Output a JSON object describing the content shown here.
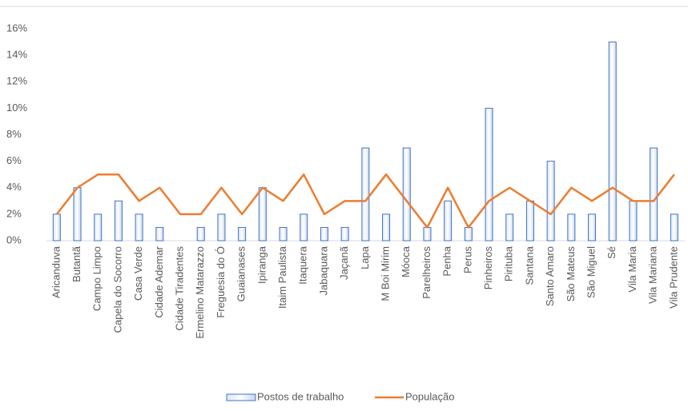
{
  "chart_data": {
    "type": "bar_line",
    "categories": [
      "Aricanduva",
      "Butantã",
      "Campo Limpo",
      "Capela do Socorro",
      "Casa Verde",
      "Cidade Ademar",
      "Cidade Tiradentes",
      "Ermelino Matarazzo",
      "Freguesia do Ó",
      "Guaianases",
      "Ipiranga",
      "Itaim Paulista",
      "Itaquera",
      "Jabaquara",
      "Jaçanã",
      "Lapa",
      "M Boi Mirim",
      "Móoca",
      "Parelheiros",
      "Penha",
      "Perus",
      "Pinheiros",
      "Pirituba",
      "Santana",
      "Santo Amaro",
      "São Mateus",
      "São Miguel",
      "Sé",
      "Vila Maria",
      "Vila Mariana",
      "Vila Prudente"
    ],
    "series": [
      {
        "name": "Postos de trabalho",
        "type": "bar",
        "color": "#4472c4",
        "values": [
          2,
          4,
          2,
          3,
          2,
          1,
          0,
          1,
          2,
          1,
          4,
          1,
          2,
          1,
          1,
          7,
          2,
          7,
          1,
          3,
          1,
          10,
          2,
          3,
          6,
          2,
          2,
          15,
          3,
          7,
          2
        ]
      },
      {
        "name": "População",
        "type": "line",
        "color": "#ed7d31",
        "values": [
          2,
          4,
          5,
          5,
          3,
          4,
          2,
          2,
          4,
          2,
          4,
          3,
          5,
          2,
          3,
          3,
          5,
          3,
          1,
          4,
          1,
          3,
          4,
          3,
          2,
          4,
          3,
          4,
          3,
          3,
          5
        ]
      }
    ],
    "ylim": [
      0,
      16
    ],
    "yticks": [
      {
        "value": 0,
        "label": "0%"
      },
      {
        "value": 2,
        "label": "2%"
      },
      {
        "value": 4,
        "label": "4%"
      },
      {
        "value": 6,
        "label": "6%"
      },
      {
        "value": 8,
        "label": "8%"
      },
      {
        "value": 10,
        "label": "10%"
      },
      {
        "value": 12,
        "label": "12%"
      },
      {
        "value": 14,
        "label": "14%"
      },
      {
        "value": 16,
        "label": "16%"
      }
    ],
    "legend": "bottom"
  }
}
